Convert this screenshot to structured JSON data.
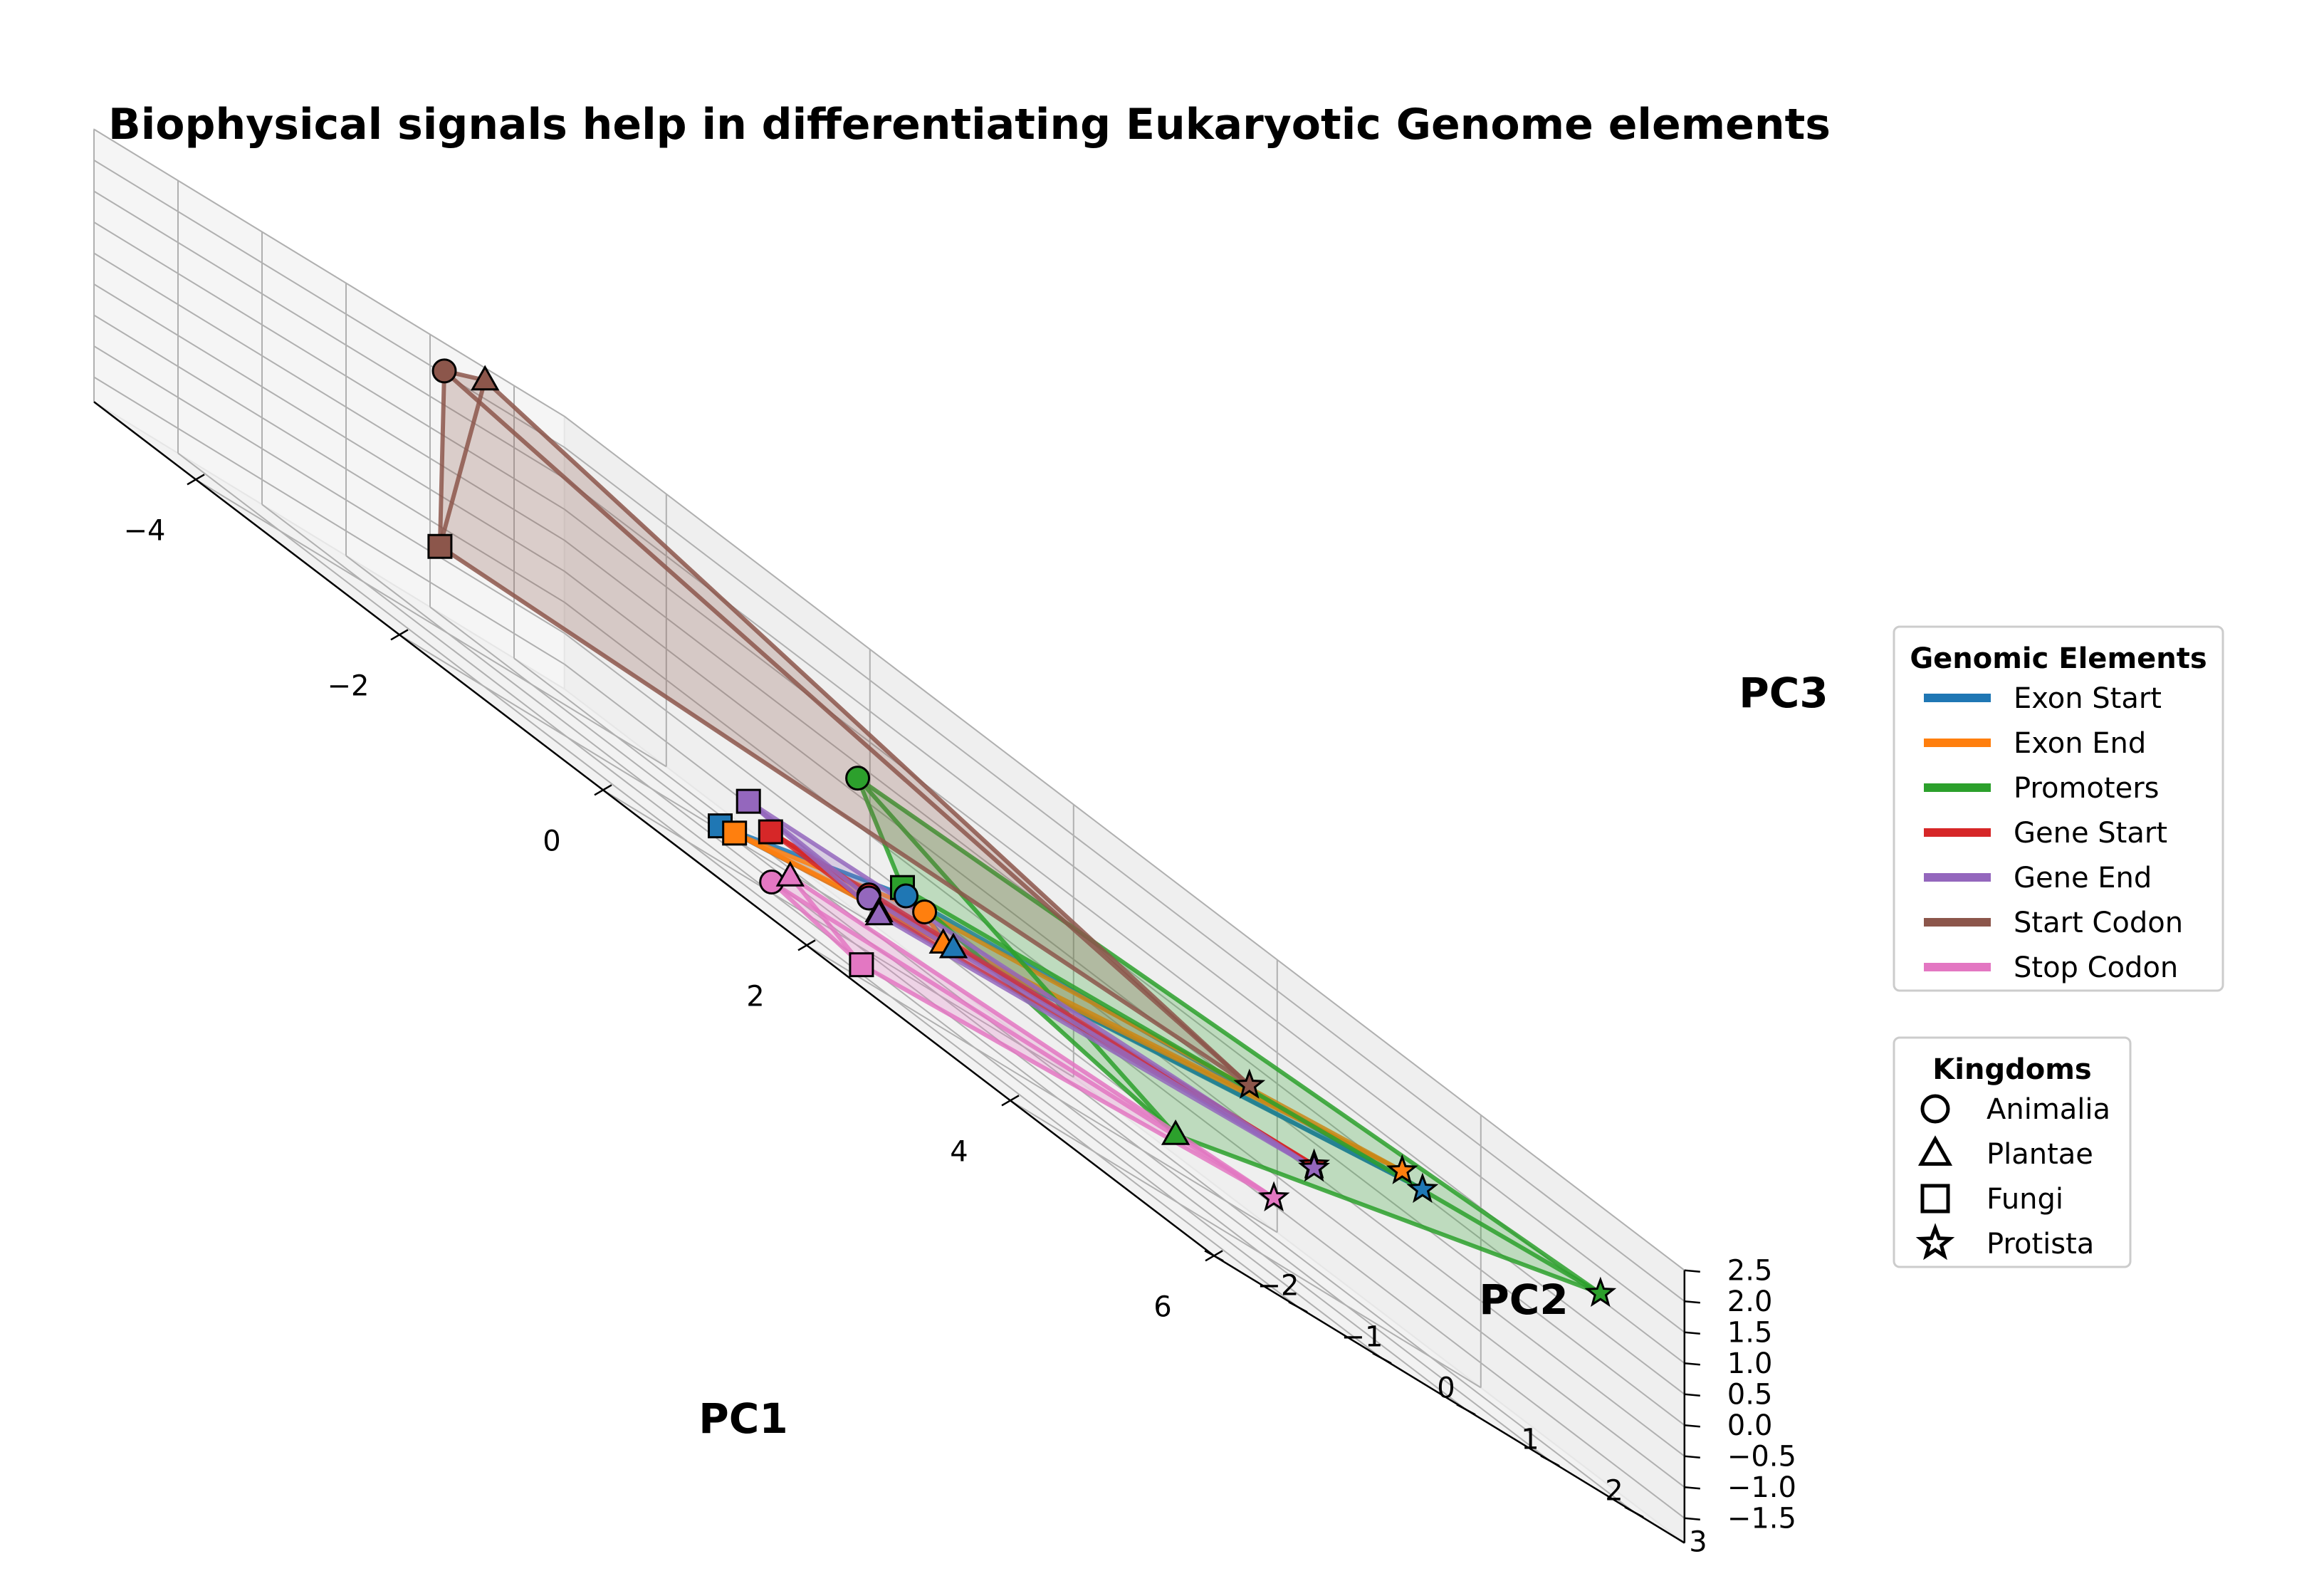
{
  "chart_data": {
    "type": "scatter",
    "subtype": "3d-scatter-with-convex-hulls",
    "title": "Biophysical signals help in differentiating Eukaryotic Genome elements",
    "xlabel": "PC1",
    "ylabel": "PC2",
    "zlabel": "PC3",
    "xlim": [
      -5,
      6
    ],
    "ylim": [
      -2,
      3.6
    ],
    "zlim": [
      -1.9,
      2.5
    ],
    "x_ticks": [
      -4,
      -2,
      0,
      2,
      4,
      6
    ],
    "x_tick_labels": [
      "−4",
      "−2",
      "0",
      "2",
      "4",
      "6"
    ],
    "y_ticks": [
      -2,
      -1,
      0,
      1,
      2,
      3
    ],
    "y_tick_labels": [
      "−2",
      "−1",
      "0",
      "1",
      "2",
      "3"
    ],
    "z_ticks": [
      -1.5,
      -1.0,
      -0.5,
      0.0,
      0.5,
      1.0,
      1.5,
      2.0,
      2.5
    ],
    "z_tick_labels": [
      "−1.5",
      "−1.0",
      "−0.5",
      "0.0",
      "0.5",
      "1.0",
      "1.5",
      "2.0",
      "2.5"
    ],
    "grid": true,
    "legend_elements": {
      "title": "Genomic Elements",
      "placement": "right",
      "entries": [
        {
          "label": "Exon Start",
          "color": "#1f77b4"
        },
        {
          "label": "Exon End",
          "color": "#ff7f0e"
        },
        {
          "label": "Promoters",
          "color": "#2ca02c"
        },
        {
          "label": "Gene Start",
          "color": "#d62728"
        },
        {
          "label": "Gene End",
          "color": "#9467bd"
        },
        {
          "label": "Start Codon",
          "color": "#8c564b"
        },
        {
          "label": "Stop Codon",
          "color": "#e377c2"
        }
      ]
    },
    "legend_kingdoms": {
      "title": "Kingdoms",
      "placement": "right",
      "entries": [
        {
          "label": "Animalia",
          "marker": "circle"
        },
        {
          "label": "Plantae",
          "marker": "triangle"
        },
        {
          "label": "Fungi",
          "marker": "square"
        },
        {
          "label": "Protista",
          "marker": "star"
        }
      ]
    },
    "series": [
      {
        "name": "Exon Start",
        "color": "#1f77b4",
        "points": [
          {
            "kingdom": "Animalia",
            "x": 0.5,
            "y": 1.0,
            "z": -0.5
          },
          {
            "kingdom": "Plantae",
            "x": 0.8,
            "y": 1.2,
            "z": -0.8
          },
          {
            "kingdom": "Fungi",
            "x": -0.5,
            "y": 0.0,
            "z": -1.45
          },
          {
            "kingdom": "Protista",
            "x": 4.5,
            "y": 2.3,
            "z": 0.85
          }
        ]
      },
      {
        "name": "Exon End",
        "color": "#ff7f0e",
        "points": [
          {
            "kingdom": "Animalia",
            "x": 0.6,
            "y": 1.1,
            "z": -0.55
          },
          {
            "kingdom": "Plantae",
            "x": 0.7,
            "y": 1.2,
            "z": -0.85
          },
          {
            "kingdom": "Fungi",
            "x": -0.4,
            "y": 0.05,
            "z": -1.4
          },
          {
            "kingdom": "Protista",
            "x": 4.3,
            "y": 2.3,
            "z": 0.9
          }
        ]
      },
      {
        "name": "Promoters",
        "color": "#2ca02c",
        "points": [
          {
            "kingdom": "Animalia",
            "x": -0.8,
            "y": 2.0,
            "z": 0.6
          },
          {
            "kingdom": "Plantae",
            "x": 2.9,
            "y": 1.3,
            "z": -1.1
          },
          {
            "kingdom": "Fungi",
            "x": 0.3,
            "y": 1.2,
            "z": -0.45
          },
          {
            "kingdom": "Protista",
            "x": 6.0,
            "y": 2.6,
            "z": 1.3
          }
        ]
      },
      {
        "name": "Gene Start",
        "color": "#d62728",
        "points": [
          {
            "kingdom": "Animalia",
            "x": 0.3,
            "y": 0.8,
            "z": -0.9
          },
          {
            "kingdom": "Plantae",
            "x": 0.4,
            "y": 0.8,
            "z": -1.05
          },
          {
            "kingdom": "Fungi",
            "x": -0.5,
            "y": 0.6,
            "z": -1.05
          },
          {
            "kingdom": "Protista",
            "x": 3.6,
            "y": 2.1,
            "z": -0.05
          }
        ]
      },
      {
        "name": "Gene End",
        "color": "#9467bd",
        "points": [
          {
            "kingdom": "Animalia",
            "x": 0.3,
            "y": 0.8,
            "z": -0.95
          },
          {
            "kingdom": "Plantae",
            "x": 0.4,
            "y": 0.8,
            "z": -1.1
          },
          {
            "kingdom": "Fungi",
            "x": -0.8,
            "y": 0.7,
            "z": -0.85
          },
          {
            "kingdom": "Protista",
            "x": 3.6,
            "y": 2.1,
            "z": -0.1
          }
        ]
      },
      {
        "name": "Start Codon",
        "color": "#8c564b",
        "points": [
          {
            "kingdom": "Animalia",
            "x": -4.2,
            "y": 1.2,
            "z": 2.25
          },
          {
            "kingdom": "Plantae",
            "x": -3.8,
            "y": 1.2,
            "z": 2.6
          },
          {
            "kingdom": "Fungi",
            "x": -3.5,
            "y": 0.3,
            "z": -0.45
          },
          {
            "kingdom": "Protista",
            "x": 2.8,
            "y": 2.3,
            "z": 0.4
          }
        ]
      },
      {
        "name": "Stop Codon",
        "color": "#e377c2",
        "points": [
          {
            "kingdom": "Animalia",
            "x": 0.5,
            "y": -0.6,
            "z": -1.6
          },
          {
            "kingdom": "Plantae",
            "x": 0.6,
            "y": -0.5,
            "z": -1.3
          },
          {
            "kingdom": "Fungi",
            "x": 1.3,
            "y": -0.5,
            "z": -1.85
          },
          {
            "kingdom": "Protista",
            "x": 3.7,
            "y": 1.5,
            "z": -0.95
          }
        ]
      }
    ]
  }
}
